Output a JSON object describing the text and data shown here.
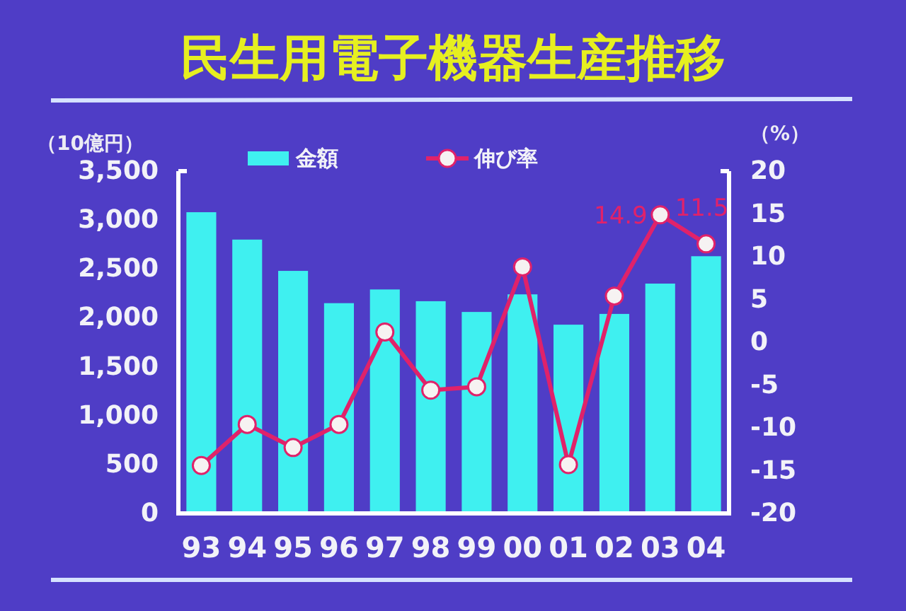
{
  "chart_data": {
    "type": "bar",
    "title": "民生用電子機器生産推移",
    "ylabel": "（10億円）",
    "y2label": "（%）",
    "categories": [
      "93",
      "94",
      "95",
      "96",
      "97",
      "98",
      "99",
      "00",
      "01",
      "02",
      "03",
      "04"
    ],
    "series": [
      {
        "name": "金額",
        "color": "#3ff0f0",
        "values": [
          3080,
          2800,
          2480,
          2150,
          2290,
          2170,
          2060,
          2240,
          1930,
          2040,
          2350,
          2630
        ]
      },
      {
        "name": "伸び率",
        "type": "line",
        "axis": "y2",
        "color": "#e0226a",
        "marker": "circle",
        "values": [
          -14.4,
          -9.6,
          -12.3,
          -9.6,
          1.2,
          -5.6,
          -5.2,
          8.8,
          -14.3,
          5.4,
          14.9,
          11.5
        ],
        "value_labels": [
          null,
          null,
          null,
          null,
          null,
          null,
          null,
          null,
          null,
          null,
          "14.9",
          "11.5"
        ]
      }
    ],
    "ylim": [
      0,
      3500
    ],
    "yticks": [
      0,
      500,
      {
        "value": 1000,
        "label": "1,000"
      },
      {
        "value": 1500,
        "label": "1,500"
      },
      {
        "value": 2000,
        "label": "2,000"
      },
      {
        "value": 2500,
        "label": "2,500"
      },
      {
        "value": 3000,
        "label": "3,000"
      },
      {
        "value": 3500,
        "label": "3,500"
      }
    ],
    "y2lim": [
      -20,
      20
    ],
    "y2ticks": [
      -20,
      -15,
      -10,
      -5,
      0,
      5,
      10,
      15,
      20
    ],
    "legend": "top"
  }
}
